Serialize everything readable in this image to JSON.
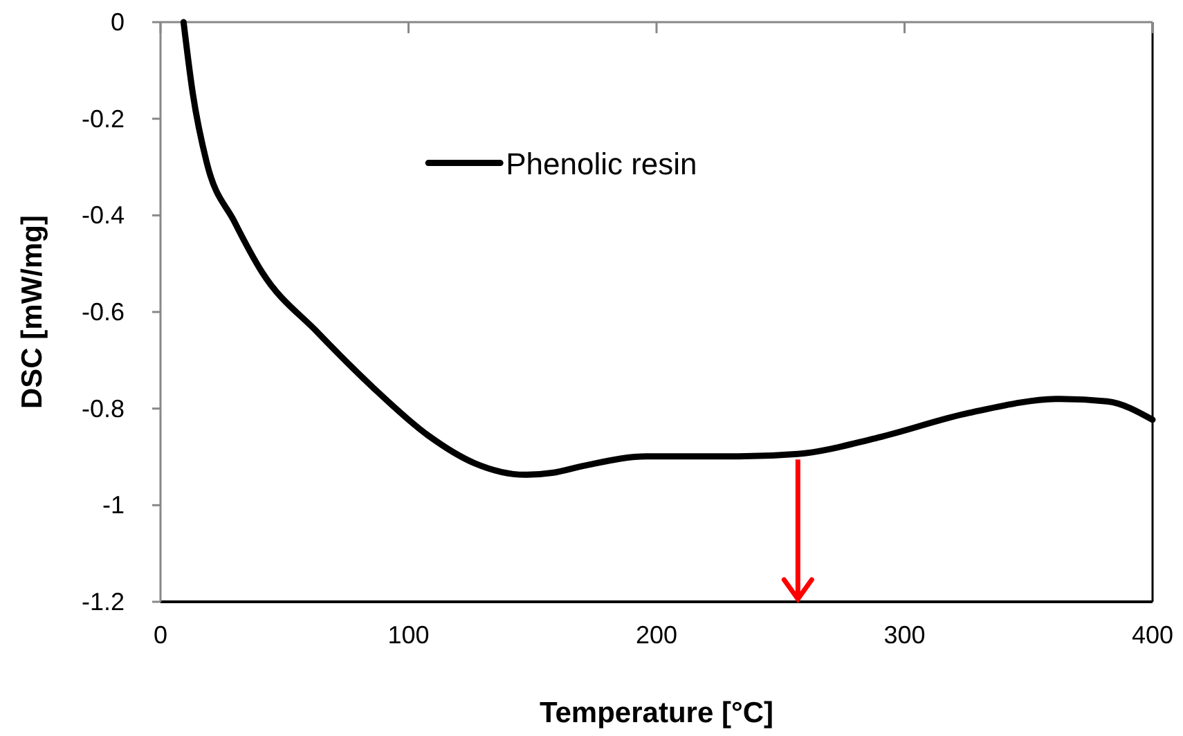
{
  "chart_data": {
    "type": "line",
    "xlabel": "Temperature [°C]",
    "ylabel": "DSC [mW/mg]",
    "x": [
      9.3,
      13,
      18.6,
      29.8,
      41,
      63.3,
      85.6,
      108,
      126.6,
      147,
      158,
      171,
      196,
      233,
      257,
      288.6,
      326,
      363,
      381.7,
      400
    ],
    "series": [
      {
        "name": "Phenolic resin",
        "color": "#000000",
        "values": [
          0,
          -0.147,
          -0.29,
          -0.413,
          -0.518,
          -0.642,
          -0.756,
          -0.856,
          -0.913,
          -0.937,
          -0.933,
          -0.918,
          -0.899,
          -0.899,
          -0.894,
          -0.861,
          -0.809,
          -0.78,
          -0.785,
          -0.823
        ]
      }
    ],
    "xlim": [
      0,
      400
    ],
    "xticks": [
      0,
      100,
      200,
      300,
      400
    ],
    "ylim": [
      -1.2,
      0
    ],
    "yticks": [
      {
        "value": -1.2,
        "label": "-1.2"
      },
      {
        "value": -1,
        "label": "-1"
      },
      {
        "value": -0.8,
        "label": "-0.8"
      },
      {
        "value": -0.6,
        "label": "-0.6"
      },
      {
        "value": -0.4,
        "label": "-0.4"
      },
      {
        "value": -0.2,
        "label": "-0.2"
      },
      {
        "value": 0,
        "label": "0"
      }
    ],
    "legend": "top left",
    "marker": "none",
    "line_style": "solid"
  }
}
